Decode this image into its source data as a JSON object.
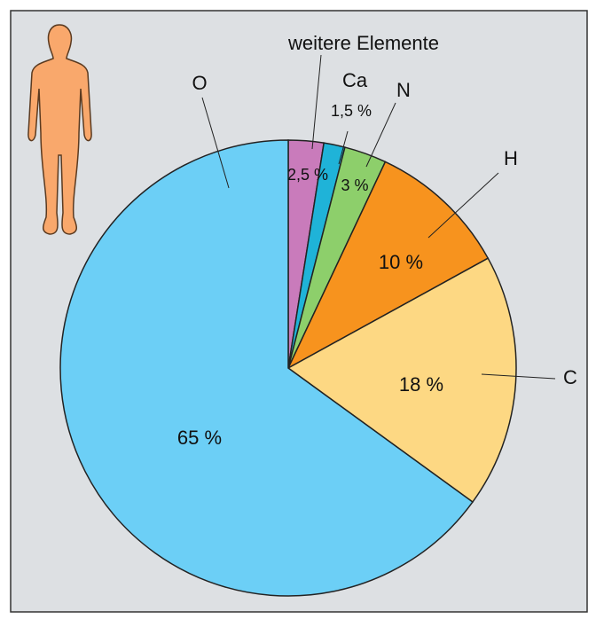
{
  "chart_data": {
    "type": "pie",
    "categories": [
      "weitere Elemente",
      "Ca",
      "N",
      "H",
      "C",
      "O"
    ],
    "values": [
      2.5,
      1.5,
      3,
      10,
      18,
      65
    ],
    "value_labels": [
      "2,5 %",
      "1,5 %",
      "3 %",
      "10 %",
      "18 %",
      "65 %"
    ],
    "colors": [
      "#c97bbb",
      "#1fb3d8",
      "#8dcf6b",
      "#f7931e",
      "#fdd883",
      "#6ccff6"
    ]
  }
}
